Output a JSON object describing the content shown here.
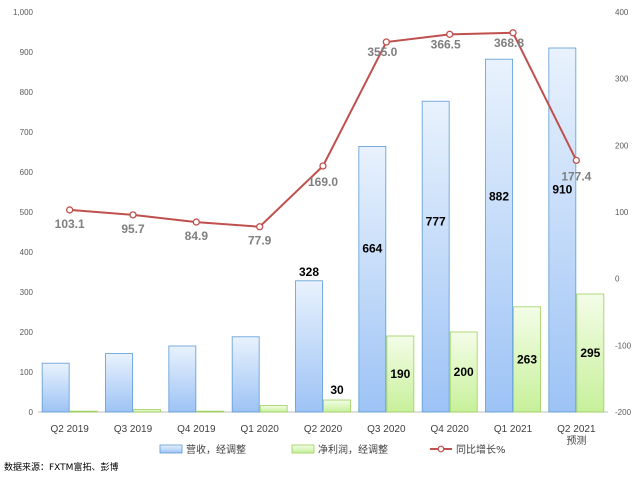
{
  "chart_data": {
    "type": "bar",
    "categories": [
      "Q2 2019",
      "Q3 2019",
      "Q4 2019",
      "Q1 2020",
      "Q2 2020",
      "Q3 2020",
      "Q4 2020",
      "Q1 2021",
      "Q2 2021"
    ],
    "category_sublabels": [
      "",
      "",
      "",
      "",
      "",
      "",
      "",
      "",
      "预测"
    ],
    "series": [
      {
        "name": "营收，经调整",
        "type": "bar",
        "axis": "left",
        "color": "#9dc3f5",
        "values": [
          122,
          146,
          165,
          188,
          328,
          664,
          777,
          882,
          910
        ],
        "labels": [
          "",
          "",
          "",
          "",
          "328",
          "664",
          "777",
          "882",
          "910"
        ]
      },
      {
        "name": "净利润，经调整",
        "type": "bar",
        "axis": "left",
        "color": "#c7f09a",
        "values": [
          2,
          6,
          2,
          16,
          30,
          190,
          200,
          263,
          295
        ],
        "labels": [
          "",
          "",
          "",
          "",
          "30",
          "190",
          "200",
          "263",
          "295"
        ]
      },
      {
        "name": "同比增长%",
        "type": "line",
        "axis": "right",
        "color": "#c0504d",
        "values": [
          103.1,
          95.7,
          84.9,
          77.9,
          169.0,
          355.0,
          366.5,
          368.8,
          177.4
        ],
        "labels": [
          "103.1",
          "95.7",
          "84.9",
          "77.9",
          "169.0",
          "355.0",
          "366.5",
          "368.8",
          "177.4"
        ]
      }
    ],
    "left_axis": {
      "ylim": [
        0,
        1000
      ],
      "ticks": [
        "0",
        "100",
        "200",
        "300",
        "400",
        "500",
        "600",
        "700",
        "800",
        "900",
        "1,000"
      ]
    },
    "right_axis": {
      "ylim": [
        -200,
        400
      ],
      "ticks": [
        "-200",
        "-100",
        "0",
        "100",
        "200",
        "300",
        "400"
      ]
    },
    "grid": false,
    "legend_position": "bottom"
  },
  "source_text": "数据来源：FXTM富拓、彭博"
}
